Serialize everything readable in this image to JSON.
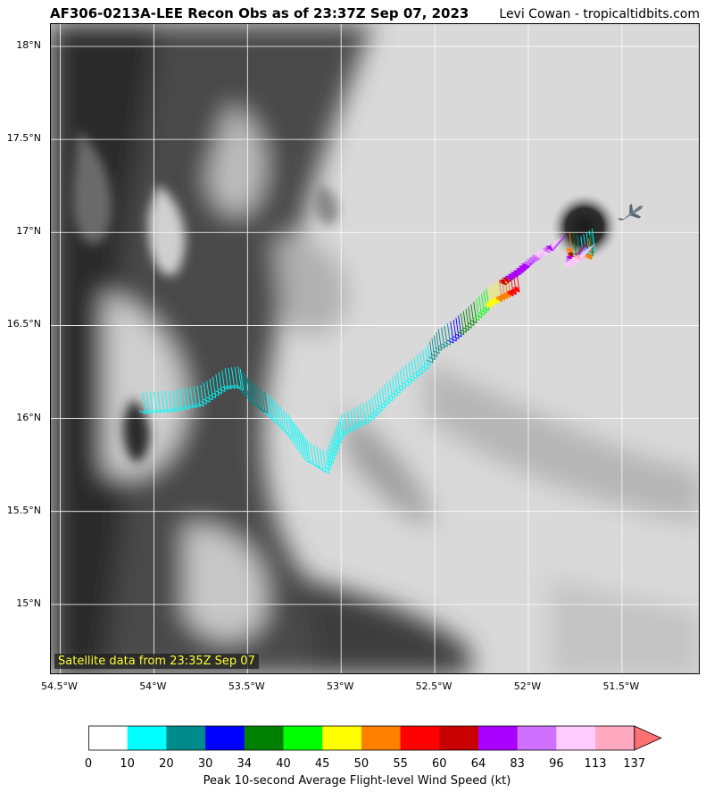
{
  "header": {
    "title": "AF306-0213A-LEE Recon Obs as of 23:37Z Sep 07, 2023",
    "credit": "Levi Cowan - tropicaltidbits.com"
  },
  "map": {
    "satellite_label": "Satellite data from 23:35Z Sep 07",
    "lon_range": [
      -54.55,
      -51.08
    ],
    "lat_range": [
      14.62,
      18.12
    ],
    "lat_ticks": [
      {
        "value": 18.0,
        "label": "18°N"
      },
      {
        "value": 17.5,
        "label": "17.5°N"
      },
      {
        "value": 17.0,
        "label": "17°N"
      },
      {
        "value": 16.5,
        "label": "16.5°N"
      },
      {
        "value": 16.0,
        "label": "16°N"
      },
      {
        "value": 15.5,
        "label": "15.5°N"
      },
      {
        "value": 15.0,
        "label": "15°N"
      }
    ],
    "lon_ticks": [
      {
        "value": -54.5,
        "label": "54.5°W"
      },
      {
        "value": -54.0,
        "label": "54°W"
      },
      {
        "value": -53.5,
        "label": "53.5°W"
      },
      {
        "value": -53.0,
        "label": "53°W"
      },
      {
        "value": -52.5,
        "label": "52.5°W"
      },
      {
        "value": -52.0,
        "label": "52°W"
      },
      {
        "value": -51.5,
        "label": "51.5°W"
      }
    ],
    "eye": {
      "lon": -51.7,
      "lat": 17.03
    },
    "aircraft": {
      "lon": -51.45,
      "lat": 17.1
    },
    "flight_track": [
      {
        "lon": -54.06,
        "lat": 16.14,
        "kt": 18
      },
      {
        "lon": -53.9,
        "lat": 16.15,
        "kt": 18
      },
      {
        "lon": -53.75,
        "lat": 16.18,
        "kt": 18
      },
      {
        "lon": -53.62,
        "lat": 16.27,
        "kt": 18
      },
      {
        "lon": -53.55,
        "lat": 16.28,
        "kt": 18
      },
      {
        "lon": -53.48,
        "lat": 16.2,
        "kt": 25
      },
      {
        "lon": -53.38,
        "lat": 16.12,
        "kt": 18
      },
      {
        "lon": -53.28,
        "lat": 16.02,
        "kt": 18
      },
      {
        "lon": -53.18,
        "lat": 15.88,
        "kt": 18
      },
      {
        "lon": -53.08,
        "lat": 15.82,
        "kt": 18
      },
      {
        "lon": -53.0,
        "lat": 16.02,
        "kt": 18
      },
      {
        "lon": -52.85,
        "lat": 16.1,
        "kt": 18
      },
      {
        "lon": -52.7,
        "lat": 16.25,
        "kt": 18
      },
      {
        "lon": -52.55,
        "lat": 16.38,
        "kt": 18
      },
      {
        "lon": -52.48,
        "lat": 16.48,
        "kt": 25
      },
      {
        "lon": -52.4,
        "lat": 16.53,
        "kt": 32
      },
      {
        "lon": -52.32,
        "lat": 16.6,
        "kt": 37
      },
      {
        "lon": -52.25,
        "lat": 16.67,
        "kt": 42
      },
      {
        "lon": -52.2,
        "lat": 16.72,
        "kt": 47
      },
      {
        "lon": -52.14,
        "lat": 16.75,
        "kt": 52
      },
      {
        "lon": -52.08,
        "lat": 16.78,
        "kt": 57
      },
      {
        "lon": -52.03,
        "lat": 16.82,
        "kt": 62
      },
      {
        "lon": -51.97,
        "lat": 16.86,
        "kt": 70
      },
      {
        "lon": -51.9,
        "lat": 16.92,
        "kt": 88
      },
      {
        "lon": -51.83,
        "lat": 16.97,
        "kt": 104
      },
      {
        "lon": -51.78,
        "lat": 17.0,
        "kt": 52
      },
      {
        "lon": -51.72,
        "lat": 16.98,
        "kt": 15
      },
      {
        "lon": -51.66,
        "lat": 17.02,
        "kt": 15
      },
      {
        "lon": -51.7,
        "lat": 16.9,
        "kt": 100
      },
      {
        "lon": -51.63,
        "lat": 16.95,
        "kt": 120
      }
    ]
  },
  "colorbar": {
    "label": "Peak 10-second Average Flight-level Wind Speed (kt)",
    "bounds": [
      "0",
      "10",
      "20",
      "30",
      "34",
      "40",
      "45",
      "50",
      "55",
      "60",
      "64",
      "83",
      "96",
      "113",
      "137"
    ],
    "colors": [
      "#ffffff",
      "#00ffff",
      "#008b8b",
      "#0000ff",
      "#008000",
      "#00ff00",
      "#ffff00",
      "#ff7f00",
      "#ff0000",
      "#c80000",
      "#aa00ff",
      "#d070ff",
      "#ffccff",
      "#ffaac0"
    ],
    "extend_color": "#ff7070"
  }
}
